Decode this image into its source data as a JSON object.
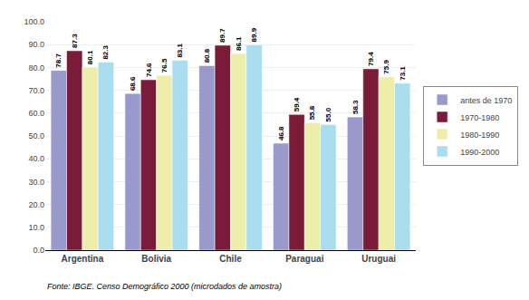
{
  "chart_data": {
    "type": "bar",
    "categories": [
      "Argentina",
      "Bolivia",
      "Chile",
      "Paraguai",
      "Uruguai"
    ],
    "series": [
      {
        "name": "antes de 1970",
        "color": "#9999CC",
        "values": [
          78.7,
          68.6,
          80.8,
          46.8,
          58.3
        ]
      },
      {
        "name": "1970-1980",
        "color": "#7B1B3A",
        "values": [
          87.3,
          74.6,
          89.7,
          59.4,
          79.4
        ]
      },
      {
        "name": "1980-1990",
        "color": "#EEEEAA",
        "values": [
          80.1,
          76.5,
          86.1,
          55.8,
          75.9
        ]
      },
      {
        "name": "1990-2000",
        "color": "#AADDEE",
        "values": [
          82.3,
          83.1,
          89.9,
          55.0,
          73.1
        ],
        "value_labels": [
          "82.3",
          "83.1",
          "89.9",
          "55.0",
          "73.1"
        ]
      }
    ],
    "ylim": [
      0,
      100
    ],
    "yticks": [
      {
        "value": 0,
        "label": "0.0"
      },
      {
        "value": 10,
        "label": "10.0"
      },
      {
        "value": 20,
        "label": "20.0"
      },
      {
        "value": 30,
        "label": "30.0"
      },
      {
        "value": 40,
        "label": "40.0"
      },
      {
        "value": 50,
        "label": "50.0"
      },
      {
        "value": 60,
        "label": "60.0"
      },
      {
        "value": 70,
        "label": "70.0"
      },
      {
        "value": 80,
        "label": "80.0"
      },
      {
        "value": 90,
        "label": "90.0"
      },
      {
        "value": 100,
        "label": "100.0"
      }
    ],
    "grid": true,
    "legend": "right",
    "data_labels": true,
    "annotations": [
      "Fonte: IBGE. Censo Demográfico 2000 (microdados de amostra)"
    ]
  }
}
